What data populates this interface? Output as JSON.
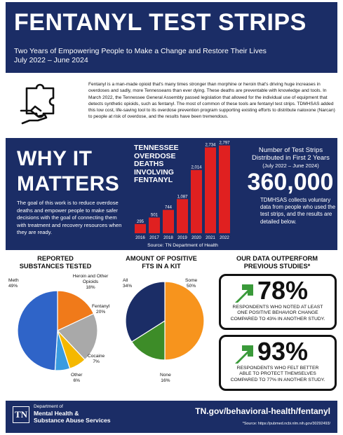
{
  "header": {
    "title": "FENTANYL TEST STRIPS",
    "subtitle_line1": "Two Years of Empowering People to Make a Change and Restore Their Lives",
    "subtitle_line2": "July 2022 – June 2024"
  },
  "intro": {
    "icon": "puzzle-hand-icon",
    "text": "Fentanyl is a man-made opioid that's many times stronger than morphine or heroin that's driving huge increases in overdoses and sadly, more Tennesseans than ever dying. These deaths are preventable with knowledge and tools. In March 2022, the Tennessee General Assembly passed legislation that allowed for the individual use of equipment that detects synthetic opioids, such as fentanyl. The most of common of these tools are fentanyl test strips. TDMHSAS added this low cost, life-saving tool to its overdose prevention program supporting existing efforts to distribute naloxone (Narcan) to people at risk of overdose, and the results have been tremendous."
  },
  "why": {
    "line1": "WHY IT",
    "line2": "MATTERS",
    "goal": "The goal of this work is to reduce overdose deaths and empower people to make safer decisions with the goal of connecting them with treatment and recovery resources when they are ready."
  },
  "strips": {
    "title": "Number of Test Strips Distributed in First 2 Years",
    "period": "(July 2022 – June 2024)",
    "count": "360,000",
    "desc": "TDMHSAS collects voluntary data from people who used the test strips, and the results are detailed below."
  },
  "chart_data": [
    {
      "type": "bar",
      "title": "TENNESSEE OVERDOSE DEATHS INVOLVING FENTANYL",
      "title_lines": [
        "TENNESSEE",
        "OVERDOSE",
        "DEATHS",
        "INVOLVING",
        "FENTANYL"
      ],
      "source": "Source: TN Department of Health",
      "categories": [
        "2016",
        "2017",
        "2018",
        "2019",
        "2020",
        "2021",
        "2022"
      ],
      "values": [
        295,
        501,
        744,
        1087,
        2014,
        2734,
        2797
      ],
      "value_labels": [
        "295",
        "501",
        "744",
        "1,087",
        "2,014",
        "2,734",
        "2,797"
      ],
      "ylim": [
        0,
        2900
      ],
      "color": "#e02020",
      "grid": false
    },
    {
      "type": "pie",
      "title": "REPORTED SUBSTANCES TESTED",
      "title_lines": [
        "REPORTED",
        "SUBSTANCES TESTED"
      ],
      "slices": [
        {
          "name": "Meth",
          "value": 49,
          "label": "49%",
          "color": "#2f64c8"
        },
        {
          "name": "Heroin and Other Opioids",
          "value": 18,
          "label": "18%",
          "color": "#f07a1a"
        },
        {
          "name": "Fentanyl",
          "value": 20,
          "label": "20%",
          "color": "#a9a9a9"
        },
        {
          "name": "Cocaine",
          "value": 7,
          "label": "7%",
          "color": "#f5b800"
        },
        {
          "name": "Other",
          "value": 6,
          "label": "6%",
          "color": "#3a9be0"
        }
      ]
    },
    {
      "type": "pie",
      "title": "AMOUNT OF POSITIVE FTS IN A KIT",
      "title_lines": [
        "AMOUNT OF POSITIVE",
        "FTS IN A KIT"
      ],
      "slices": [
        {
          "name": "All",
          "value": 34,
          "label": "34%",
          "color": "#1b2d66"
        },
        {
          "name": "Some",
          "value": 50,
          "label": "50%",
          "color": "#f7941d"
        },
        {
          "name": "None",
          "value": 16,
          "label": "16%",
          "color": "#3d8c28"
        }
      ]
    }
  ],
  "outperform": {
    "title_line1": "OUR DATA OUTPERFORM",
    "title_line2": "PREVIOUS STUDIES*",
    "arrow_color": "#3a9a3a",
    "stats": [
      {
        "pct": "78%",
        "line1": "RESPONDENTS WHO NOTED AT LEAST",
        "line2": "ONE POSITIVE BEHAVIOR CHANGE",
        "line3": "COMPARED TO 43% IN ANOTHER STUDY."
      },
      {
        "pct": "93%",
        "line1": "RESPONDENTS WHO FELT BETTER",
        "line2": "ABLE TO PROTECT THEMSELVES",
        "line3": "COMPARED TO 77% IN ANOTHER STUDY."
      }
    ]
  },
  "footer": {
    "logo": "TN",
    "dept_small": "Department of",
    "dept_line1": "Mental Health &",
    "dept_line2": "Substance Abuse Services",
    "url": "TN.gov/behavioral-health/fentanyl",
    "source": "*Source: https://pubmed.ncbi.nlm.nih.gov/30292493/"
  },
  "colors": {
    "navy": "#1b2d66",
    "red": "#e02020",
    "green": "#3a9a3a"
  }
}
